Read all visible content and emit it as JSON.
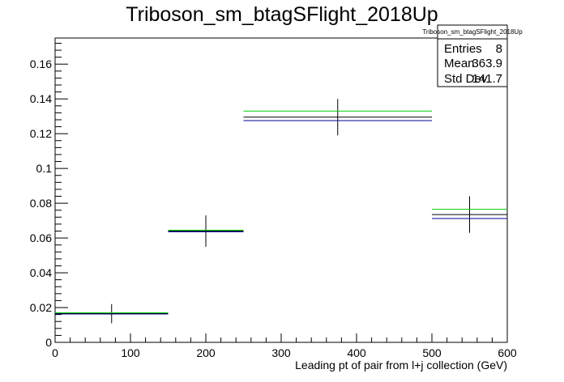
{
  "chart_data": {
    "type": "histogram",
    "title": "Triboson_sm_btagSFlight_2018Up",
    "xlabel": "Leading pt of pair from l+j collection (GeV)",
    "ylabel": "",
    "xlim": [
      0,
      600
    ],
    "ylim": [
      0,
      0.175
    ],
    "x_ticks": [
      0,
      100,
      200,
      300,
      400,
      500,
      600
    ],
    "y_ticks": [
      0,
      0.02,
      0.04,
      0.06,
      0.08,
      0.1,
      0.12,
      0.14,
      0.16
    ],
    "y_tick_labels": [
      "0",
      "0.02",
      "0.04",
      "0.06",
      "0.08",
      "0.1",
      "0.12",
      "0.14",
      "0.16"
    ],
    "grid": false,
    "bin_edges": [
      0,
      150,
      250,
      500,
      600
    ],
    "bin_centers": [
      75,
      200,
      375,
      550
    ],
    "series": [
      {
        "values": [
          0.0165,
          0.064,
          0.1295,
          0.0735
        ],
        "errors": [
          0.0055,
          0.009,
          0.0105,
          0.0105
        ],
        "color": "#000000"
      },
      {
        "values": [
          0.017,
          0.0645,
          0.133,
          0.0765
        ],
        "color": "#00cc00"
      },
      {
        "values": [
          0.0163,
          0.0636,
          0.1275,
          0.0712
        ],
        "color": "#000099"
      }
    ],
    "stats": {
      "title": "Triboson_sm_btagSFlight_2018Up",
      "entries_label": "Entries",
      "entries_value": "8",
      "mean_label": "Mean",
      "mean_value": "363.9",
      "stddev_label": "Std Dev",
      "stddev_value": "141.7"
    }
  }
}
